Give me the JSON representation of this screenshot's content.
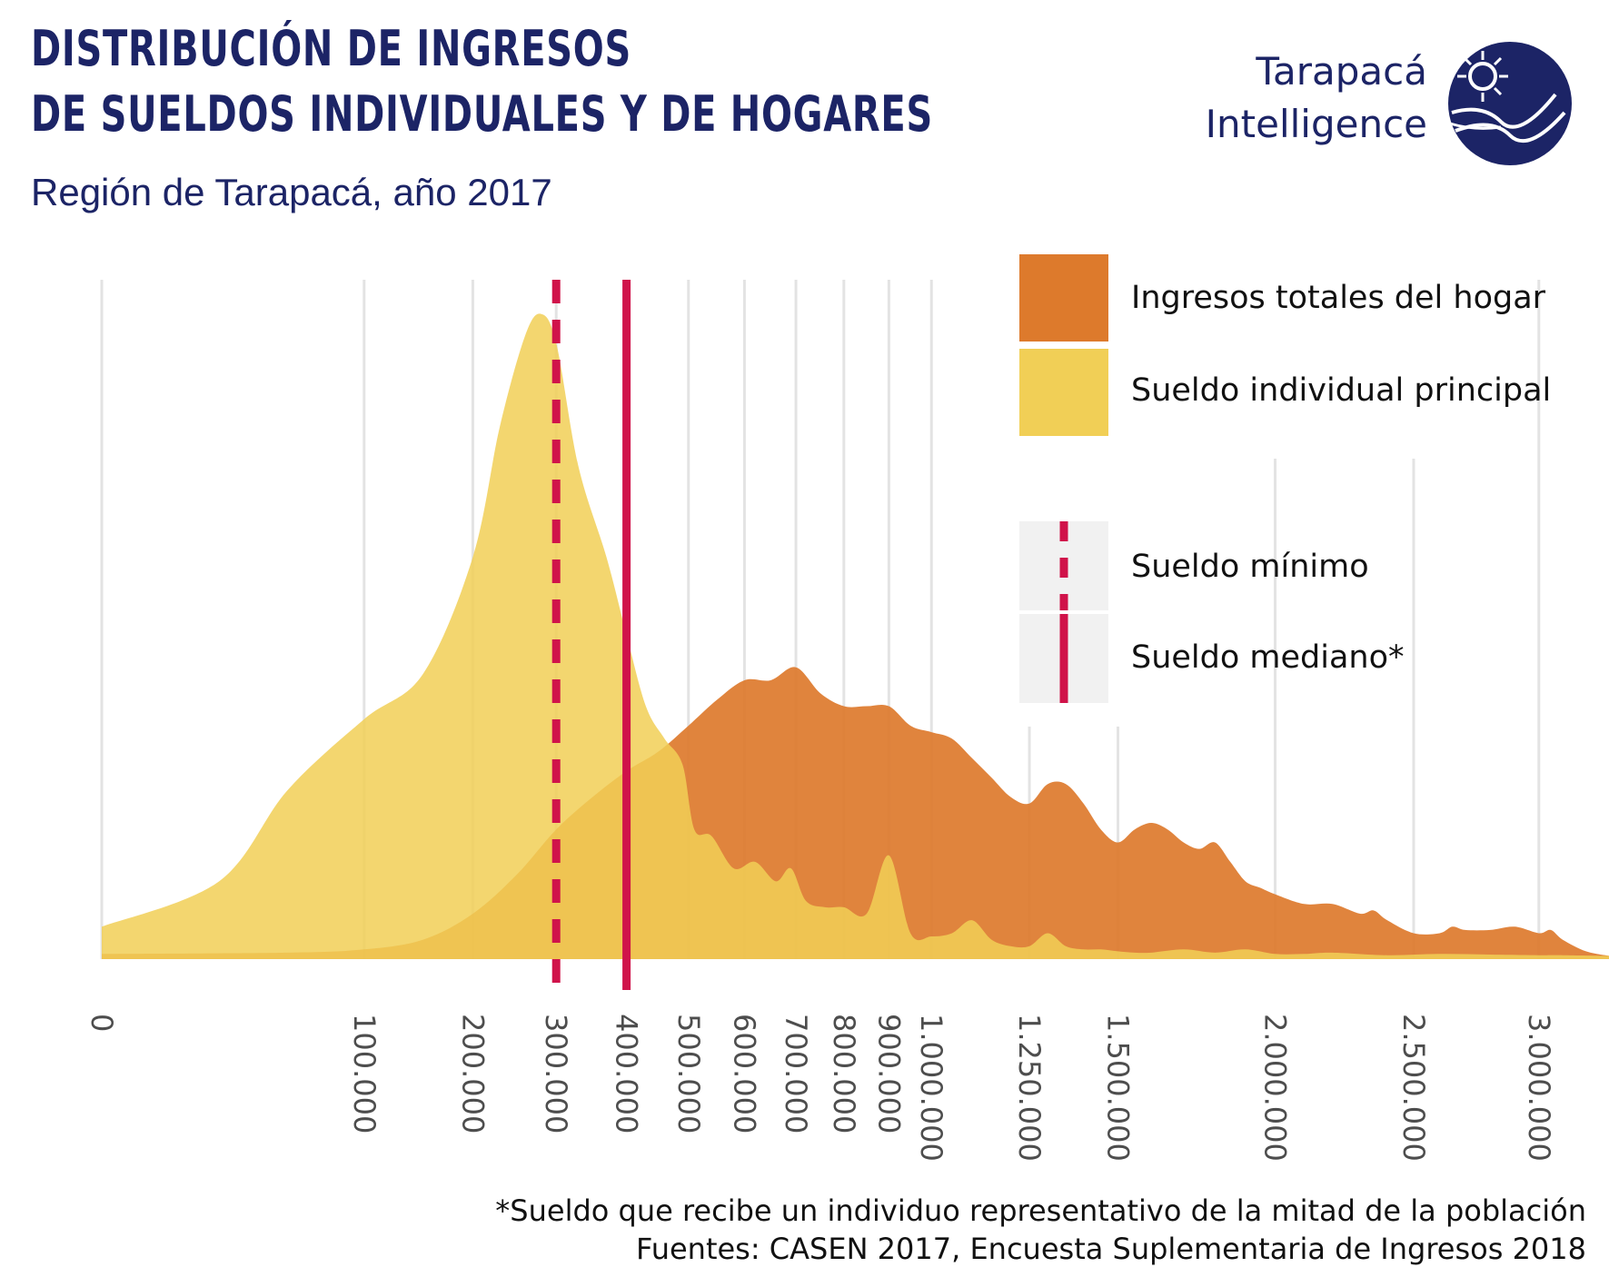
{
  "header": {
    "title_line1": "DISTRIBUCIÓN DE INGRESOS",
    "title_line2": "DE SUELDOS INDIVIDUALES Y DE HOGARES",
    "subtitle": "Región de Tarapacá, año 2017"
  },
  "brand": {
    "line1": "Tarapacá",
    "line2": "Intelligence",
    "logo_icon": "tarapaca-intelligence-logo",
    "color": "#1c2466"
  },
  "legend": {
    "fill_items": [
      {
        "label": "Ingresos totales del hogar",
        "color": "#dd7a2c"
      },
      {
        "label": "Sueldo individual principal",
        "color": "#f1cf56"
      }
    ],
    "line_items": [
      {
        "label": "Sueldo mínimo",
        "style": "dashed",
        "color": "#d0134a"
      },
      {
        "label": "Sueldo mediano*",
        "style": "solid",
        "color": "#d0134a"
      }
    ]
  },
  "footnotes": {
    "note": "*Sueldo que recibe un individuo representativo de la mitad de la población",
    "source": "Fuentes: CASEN 2017, Encuesta Suplementaria de Ingresos 2018"
  },
  "chart_data": {
    "type": "area",
    "x_scale": "sqrt",
    "xlim": [
      0,
      3300000
    ],
    "ylim": [
      0,
      1
    ],
    "y_axis_visible": false,
    "grid": "vertical",
    "legend_position": "top-right",
    "xticks": [
      {
        "value": 0,
        "label": "0"
      },
      {
        "value": 100000,
        "label": "100.000"
      },
      {
        "value": 200000,
        "label": "200.000"
      },
      {
        "value": 300000,
        "label": "300.000"
      },
      {
        "value": 400000,
        "label": "400.000"
      },
      {
        "value": 500000,
        "label": "500.000"
      },
      {
        "value": 600000,
        "label": "600.000"
      },
      {
        "value": 700000,
        "label": "700.000"
      },
      {
        "value": 800000,
        "label": "800.000"
      },
      {
        "value": 900000,
        "label": "900.000"
      },
      {
        "value": 1000000,
        "label": "1.000.000"
      },
      {
        "value": 1250000,
        "label": "1.250.000"
      },
      {
        "value": 1500000,
        "label": "1.500.000"
      },
      {
        "value": 2000000,
        "label": "2.000.000"
      },
      {
        "value": 2500000,
        "label": "2.500.000"
      },
      {
        "value": 3000000,
        "label": "3.000.000"
      }
    ],
    "series": [
      {
        "name": "Ingresos totales del hogar",
        "color": "#dd7a2c",
        "x": [
          0,
          50000,
          100000,
          150000,
          200000,
          250000,
          300000,
          350000,
          400000,
          450000,
          500000,
          550000,
          600000,
          650000,
          700000,
          750000,
          800000,
          850000,
          900000,
          950000,
          1000000,
          1050000,
          1100000,
          1150000,
          1200000,
          1250000,
          1300000,
          1350000,
          1400000,
          1450000,
          1500000,
          1550000,
          1600000,
          1650000,
          1700000,
          1750000,
          1800000,
          1850000,
          1900000,
          1950000,
          2000000,
          2100000,
          2200000,
          2300000,
          2350000,
          2400000,
          2500000,
          2600000,
          2650000,
          2700000,
          2800000,
          2900000,
          3000000,
          3050000,
          3100000,
          3200000,
          3300000
        ],
        "y": [
          0.008,
          0.01,
          0.015,
          0.03,
          0.07,
          0.13,
          0.2,
          0.25,
          0.29,
          0.32,
          0.36,
          0.4,
          0.43,
          0.43,
          0.45,
          0.41,
          0.39,
          0.39,
          0.39,
          0.36,
          0.35,
          0.34,
          0.31,
          0.28,
          0.25,
          0.24,
          0.27,
          0.27,
          0.24,
          0.2,
          0.18,
          0.2,
          0.21,
          0.2,
          0.18,
          0.17,
          0.18,
          0.15,
          0.12,
          0.11,
          0.1,
          0.085,
          0.085,
          0.07,
          0.075,
          0.06,
          0.04,
          0.04,
          0.05,
          0.045,
          0.045,
          0.05,
          0.04,
          0.045,
          0.03,
          0.012,
          0.005
        ]
      },
      {
        "name": "Sueldo individual principal",
        "color": "#f1cf56",
        "x": [
          0,
          20000,
          50000,
          100000,
          150000,
          200000,
          230000,
          260000,
          280000,
          300000,
          330000,
          370000,
          400000,
          430000,
          460000,
          490000,
          510000,
          540000,
          580000,
          620000,
          660000,
          690000,
          720000,
          760000,
          800000,
          850000,
          900000,
          950000,
          1000000,
          1050000,
          1100000,
          1150000,
          1200000,
          1250000,
          1300000,
          1350000,
          1400000,
          1450000,
          1500000,
          1550000,
          1600000,
          1700000,
          1800000,
          1900000,
          2000000,
          2100000,
          2200000,
          2400000,
          2600000,
          2800000,
          3000000,
          3100000,
          3300000
        ],
        "y": [
          0.05,
          0.12,
          0.26,
          0.37,
          0.44,
          0.62,
          0.82,
          0.96,
          0.995,
          0.95,
          0.76,
          0.62,
          0.5,
          0.39,
          0.34,
          0.3,
          0.2,
          0.19,
          0.14,
          0.15,
          0.12,
          0.14,
          0.09,
          0.08,
          0.08,
          0.07,
          0.16,
          0.04,
          0.035,
          0.04,
          0.06,
          0.03,
          0.02,
          0.02,
          0.04,
          0.02,
          0.015,
          0.015,
          0.012,
          0.01,
          0.01,
          0.015,
          0.01,
          0.015,
          0.008,
          0.008,
          0.01,
          0.006,
          0.008,
          0.007,
          0.006,
          0.006,
          0.005
        ]
      }
    ],
    "reference_lines": [
      {
        "name": "Sueldo mínimo",
        "x": 300000,
        "style": "dashed",
        "color": "#d0134a"
      },
      {
        "name": "Sueldo mediano*",
        "x": 400000,
        "style": "solid",
        "color": "#d0134a"
      }
    ]
  }
}
